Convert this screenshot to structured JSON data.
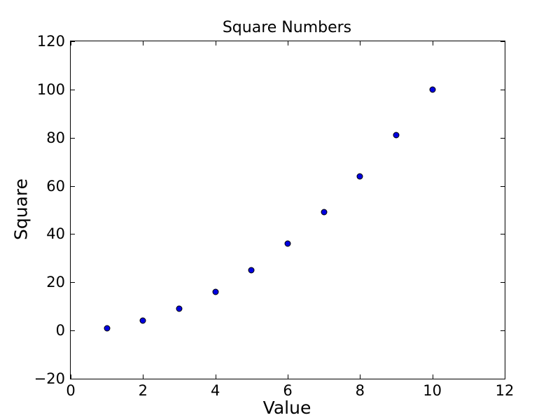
{
  "chart_data": {
    "type": "scatter",
    "title": "Square Numbers",
    "xlabel": "Value",
    "ylabel": "Square",
    "x": [
      1,
      2,
      3,
      4,
      5,
      6,
      7,
      8,
      9,
      10
    ],
    "y": [
      1,
      4,
      9,
      16,
      25,
      36,
      49,
      64,
      81,
      100
    ],
    "xlim": [
      0,
      12
    ],
    "ylim": [
      -20,
      120
    ],
    "xticks": [
      0,
      2,
      4,
      6,
      8,
      10,
      12
    ],
    "yticks": [
      -20,
      0,
      20,
      40,
      60,
      80,
      100,
      120
    ],
    "grid": false,
    "legend": "none",
    "tick_direction": "in",
    "marker_color": "#0000e0",
    "marker_edge_color": "#000000",
    "axes_color": "#000000",
    "background": "#ffffff"
  }
}
